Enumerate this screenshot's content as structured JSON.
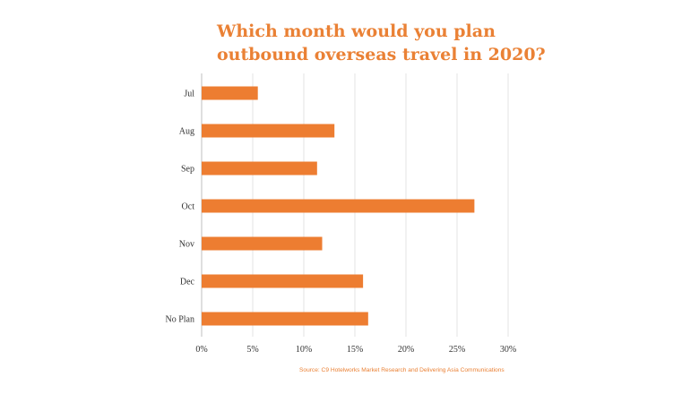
{
  "chart_data": {
    "type": "bar",
    "orientation": "horizontal",
    "title_lines": [
      "Which month would you plan",
      "outbound overseas travel in 2020?"
    ],
    "categories": [
      "Jul",
      "Aug",
      "Sep",
      "Oct",
      "Nov",
      "Dec",
      "No Plan"
    ],
    "values": [
      5.5,
      13.0,
      11.3,
      26.7,
      11.8,
      15.8,
      16.3
    ],
    "xlim": [
      0,
      30
    ],
    "xticks": [
      0,
      5,
      10,
      15,
      20,
      25,
      30
    ],
    "xtick_labels": [
      "0%",
      "5%",
      "10%",
      "15%",
      "20%",
      "25%",
      "30%"
    ],
    "xlabel": "",
    "ylabel": "",
    "grid": "vertical",
    "legend": "none",
    "bar_color": "#ed7d31",
    "title_color": "#ea8135",
    "source": "Source: C9 Hotelworks Market Research and Delivering Asia Communications"
  }
}
